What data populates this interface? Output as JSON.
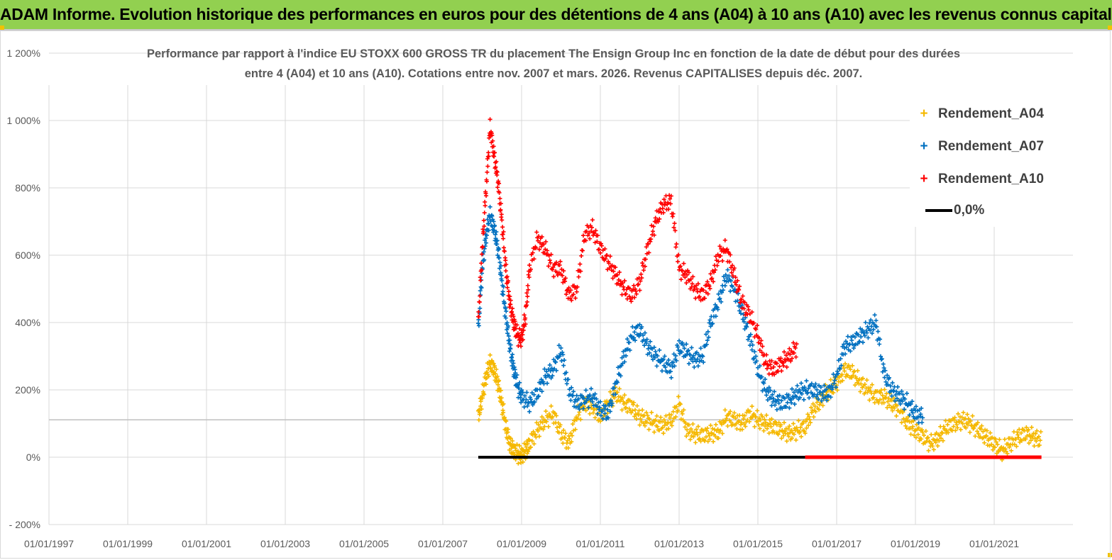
{
  "header": {
    "title": "ADAM Informe. Evolution historique des performances en euros pour des détentions de 4 ans (A04) à 10 ans (A10) avec les revenus connus capitalisés",
    "background_color": "#92d050"
  },
  "chart_data": {
    "type": "scatter",
    "title_line1": "Performance par rapport à l'indice EU STOXX 600 GROSS TR  du placement The Ensign Group Inc en fonction de la date de début pour des durées",
    "title_line2": "entre 4 (A04) et 10 ans (A10). Cotations entre nov. 2007 et mars. 2026. Revenus CAPITALISES depuis déc. 2007.",
    "xlabel": "",
    "ylabel": "",
    "xlim": [
      1997.0,
      2023.0
    ],
    "ylim": [
      -200,
      1200
    ],
    "x_ticks": [
      {
        "x": 1997,
        "label": "01/01/1997"
      },
      {
        "x": 1999,
        "label": "01/01/1999"
      },
      {
        "x": 2001,
        "label": "01/01/2001"
      },
      {
        "x": 2003,
        "label": "01/01/2003"
      },
      {
        "x": 2005,
        "label": "01/01/2005"
      },
      {
        "x": 2007,
        "label": "01/01/2007"
      },
      {
        "x": 2009,
        "label": "01/01/2009"
      },
      {
        "x": 2011,
        "label": "01/01/2011"
      },
      {
        "x": 2013,
        "label": "01/01/2013"
      },
      {
        "x": 2015,
        "label": "01/01/2015"
      },
      {
        "x": 2017,
        "label": "01/01/2017"
      },
      {
        "x": 2019,
        "label": "01/01/2019"
      },
      {
        "x": 2021,
        "label": "01/01/2021"
      }
    ],
    "y_ticks": [
      {
        "y": 1200,
        "label": "1 200%"
      },
      {
        "y": 1000,
        "label": "1 000%"
      },
      {
        "y": 800,
        "label": "800%"
      },
      {
        "y": 600,
        "label": "600%"
      },
      {
        "y": 400,
        "label": "400%"
      },
      {
        "y": 200,
        "label": "200%"
      },
      {
        "y": 0,
        "label": "0%"
      },
      {
        "y": -200,
        "label": "- 200%"
      }
    ],
    "reference_line_y": 111,
    "legend_position": "top-right",
    "series": [
      {
        "name": "Rendement_A04",
        "color": "#f5b800",
        "marker": "+",
        "x": [
          2007.9,
          2008.0,
          2008.1,
          2008.2,
          2008.3,
          2008.4,
          2008.5,
          2008.6,
          2008.7,
          2008.8,
          2008.9,
          2009.0,
          2009.1,
          2009.2,
          2009.4,
          2009.6,
          2009.8,
          2010.0,
          2010.2,
          2010.4,
          2010.6,
          2010.8,
          2011.0,
          2011.2,
          2011.4,
          2011.6,
          2011.8,
          2012.0,
          2012.2,
          2012.4,
          2012.6,
          2012.8,
          2013.0,
          2013.2,
          2013.4,
          2013.6,
          2013.8,
          2014.0,
          2014.2,
          2014.4,
          2014.6,
          2014.8,
          2015.0,
          2015.2,
          2015.4,
          2015.6,
          2015.8,
          2016.0,
          2016.2,
          2016.4,
          2016.6,
          2016.8,
          2017.0,
          2017.2,
          2017.4,
          2017.6,
          2017.8,
          2018.0,
          2018.2,
          2018.4,
          2018.6,
          2018.8,
          2019.0,
          2019.2,
          2019.4,
          2019.6,
          2019.8,
          2020.0,
          2020.2,
          2020.4,
          2020.6,
          2020.8,
          2021.0,
          2021.2,
          2021.4,
          2021.6,
          2021.8,
          2022.0,
          2022.2
        ],
        "values": [
          120,
          180,
          240,
          280,
          260,
          220,
          160,
          90,
          40,
          20,
          10,
          5,
          20,
          40,
          80,
          110,
          130,
          70,
          40,
          120,
          160,
          150,
          120,
          160,
          190,
          160,
          150,
          120,
          110,
          100,
          95,
          110,
          160,
          80,
          70,
          65,
          70,
          75,
          120,
          110,
          100,
          130,
          110,
          100,
          90,
          80,
          70,
          80,
          90,
          140,
          170,
          200,
          220,
          260,
          250,
          220,
          200,
          180,
          180,
          160,
          140,
          100,
          80,
          60,
          40,
          60,
          90,
          100,
          110,
          100,
          80,
          60,
          40,
          20,
          40,
          60,
          70,
          60,
          50
        ]
      },
      {
        "name": "Rendement_A07",
        "color": "#0070c0",
        "marker": "+",
        "x": [
          2007.9,
          2008.0,
          2008.1,
          2008.2,
          2008.3,
          2008.4,
          2008.5,
          2008.6,
          2008.7,
          2008.8,
          2008.9,
          2009.0,
          2009.2,
          2009.4,
          2009.6,
          2009.8,
          2010.0,
          2010.2,
          2010.4,
          2010.6,
          2010.8,
          2011.0,
          2011.2,
          2011.4,
          2011.6,
          2011.8,
          2012.0,
          2012.2,
          2012.4,
          2012.6,
          2012.8,
          2013.0,
          2013.2,
          2013.4,
          2013.6,
          2013.8,
          2014.0,
          2014.2,
          2014.4,
          2014.6,
          2014.8,
          2015.0,
          2015.2,
          2015.4,
          2015.6,
          2015.8,
          2016.0,
          2016.2,
          2016.4,
          2016.6,
          2016.8,
          2017.0,
          2017.2,
          2017.4,
          2017.6,
          2017.8,
          2018.0,
          2018.2,
          2018.4,
          2018.6,
          2018.8,
          2019.0,
          2019.2
        ],
        "values": [
          380,
          560,
          660,
          720,
          680,
          620,
          520,
          420,
          330,
          260,
          210,
          180,
          160,
          190,
          240,
          260,
          320,
          200,
          160,
          170,
          180,
          140,
          130,
          220,
          300,
          360,
          380,
          330,
          300,
          280,
          260,
          330,
          310,
          290,
          300,
          400,
          460,
          540,
          500,
          430,
          350,
          260,
          200,
          170,
          160,
          170,
          190,
          200,
          200,
          190,
          190,
          240,
          330,
          340,
          360,
          380,
          400,
          250,
          200,
          180,
          160,
          130,
          120
        ]
      },
      {
        "name": "Rendement_A10",
        "color": "#ff0000",
        "marker": "+",
        "x": [
          2007.9,
          2008.0,
          2008.1,
          2008.2,
          2008.3,
          2008.4,
          2008.5,
          2008.6,
          2008.7,
          2008.8,
          2008.9,
          2009.0,
          2009.1,
          2009.2,
          2009.4,
          2009.6,
          2009.8,
          2010.0,
          2010.2,
          2010.4,
          2010.6,
          2010.8,
          2011.0,
          2011.2,
          2011.4,
          2011.6,
          2011.8,
          2012.0,
          2012.2,
          2012.4,
          2012.6,
          2012.8,
          2013.0,
          2013.2,
          2013.4,
          2013.6,
          2013.8,
          2014.0,
          2014.2,
          2014.4,
          2014.6,
          2014.8,
          2015.0,
          2015.2,
          2015.4,
          2015.6,
          2015.8,
          2016.0
        ],
        "values": [
          400,
          620,
          800,
          980,
          900,
          820,
          700,
          560,
          460,
          400,
          360,
          350,
          420,
          560,
          650,
          620,
          560,
          560,
          480,
          500,
          660,
          680,
          620,
          580,
          540,
          500,
          480,
          520,
          620,
          700,
          750,
          760,
          560,
          540,
          500,
          480,
          520,
          600,
          620,
          540,
          460,
          420,
          360,
          280,
          260,
          280,
          300,
          330
        ]
      }
    ],
    "zero_line": {
      "name": "0,0%",
      "color": "#000000",
      "x_start": 2007.9,
      "x_end": 2016.2
    },
    "zero_red_segment": {
      "color": "#ff0000",
      "x_start": 2016.2,
      "x_end": 2022.2
    }
  }
}
